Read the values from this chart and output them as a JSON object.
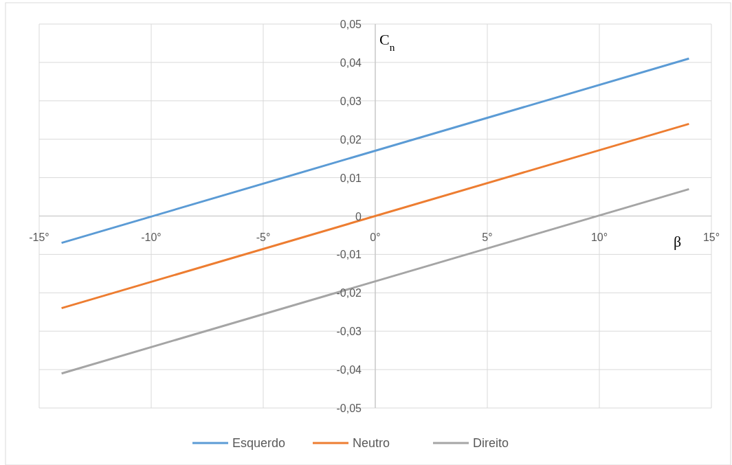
{
  "chart_data": {
    "type": "line",
    "xlabel": "β",
    "ylabel": "C$_{n}$",
    "x": [
      -14,
      14
    ],
    "series": [
      {
        "name": "Esquerdo",
        "color": "#5b9bd5",
        "values": [
          -0.007,
          0.041
        ]
      },
      {
        "name": "Neutro",
        "color": "#ed7d31",
        "values": [
          -0.024,
          0.024
        ]
      },
      {
        "name": "Direito",
        "color": "#a5a5a5",
        "values": [
          -0.041,
          0.007
        ]
      }
    ],
    "xlim": [
      -15,
      15
    ],
    "xticks": [
      {
        "value": -15,
        "label": "-15°"
      },
      {
        "value": -10,
        "label": "-10°"
      },
      {
        "value": -5,
        "label": "-5°"
      },
      {
        "value": 0,
        "label": "0°"
      },
      {
        "value": 5,
        "label": "5°"
      },
      {
        "value": 10,
        "label": "10°"
      },
      {
        "value": 15,
        "label": "15°"
      }
    ],
    "ylim": [
      -0.05,
      0.05
    ],
    "yticks": [
      {
        "value": -0.05,
        "label": "-0,05"
      },
      {
        "value": -0.04,
        "label": "-0,04"
      },
      {
        "value": -0.03,
        "label": "-0,03"
      },
      {
        "value": -0.02,
        "label": "-0,02"
      },
      {
        "value": -0.01,
        "label": "-0,01"
      },
      {
        "value": 0,
        "label": "0"
      },
      {
        "value": 0.01,
        "label": "0,01"
      },
      {
        "value": 0.02,
        "label": "0,02"
      },
      {
        "value": 0.03,
        "label": "0,03"
      },
      {
        "value": 0.04,
        "label": "0,04"
      },
      {
        "value": 0.05,
        "label": "0,05"
      }
    ],
    "grid": true,
    "legend": "bottom",
    "marker": "none",
    "line_style": "solid"
  }
}
